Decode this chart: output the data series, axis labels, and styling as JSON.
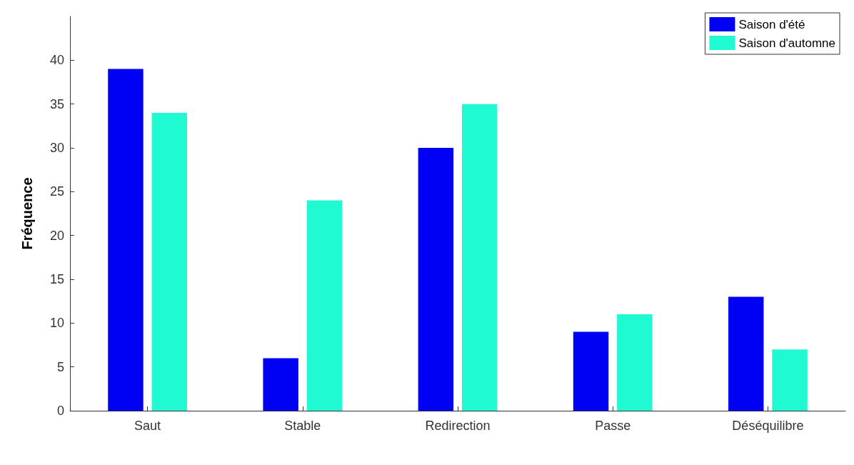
{
  "chart_data": {
    "type": "bar",
    "ylabel": "Fréquence",
    "categories": [
      "Saut",
      "Stable",
      "Redirection",
      "Passe",
      "Déséquilibre"
    ],
    "series": [
      {
        "name": "Saison d'été",
        "color": "#0000f5",
        "values": [
          39,
          6,
          30,
          9,
          13
        ]
      },
      {
        "name": "Saison d'automne",
        "color": "#1ffad2",
        "values": [
          34,
          24,
          35,
          11,
          7
        ]
      }
    ],
    "ylim": [
      0,
      45
    ],
    "yticks": [
      0,
      5,
      10,
      15,
      20,
      25,
      30,
      35,
      40
    ],
    "grid": false,
    "legend": "top right"
  }
}
